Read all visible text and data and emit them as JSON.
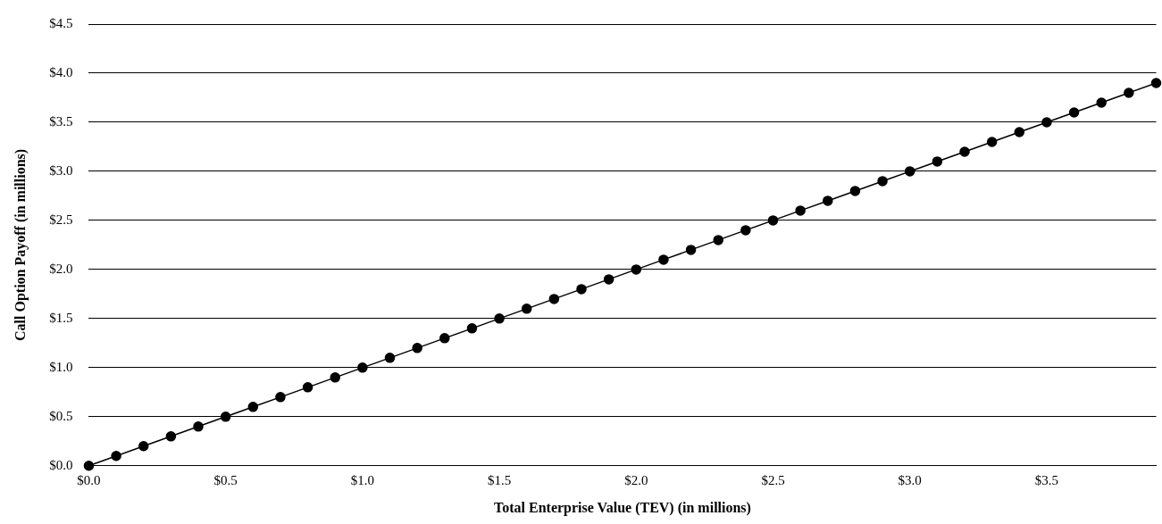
{
  "chart_data": {
    "type": "line",
    "xlabel": "Total Enterprise Value (TEV) (in millions)",
    "ylabel": "Call Option Payoff (in millions)",
    "x": [
      0,
      0.1,
      0.2,
      0.3,
      0.4,
      0.5,
      0.6,
      0.7,
      0.8,
      0.9,
      1.0,
      1.1,
      1.2,
      1.3,
      1.4,
      1.5,
      1.6,
      1.7,
      1.8,
      1.9,
      2.0,
      2.1,
      2.2,
      2.3,
      2.4,
      2.5,
      2.6,
      2.7,
      2.8,
      2.9,
      3.0,
      3.1,
      3.2,
      3.3,
      3.4,
      3.5,
      3.6,
      3.7,
      3.8,
      3.9
    ],
    "series": [
      {
        "color": "#000000",
        "values": [
          0,
          0.1,
          0.2,
          0.3,
          0.4,
          0.5,
          0.6,
          0.7,
          0.8,
          0.9,
          1.0,
          1.1,
          1.2,
          1.3,
          1.4,
          1.5,
          1.6,
          1.7,
          1.8,
          1.9,
          2.0,
          2.1,
          2.2,
          2.3,
          2.4,
          2.5,
          2.6,
          2.7,
          2.8,
          2.9,
          3.0,
          3.1,
          3.2,
          3.3,
          3.4,
          3.5,
          3.6,
          3.7,
          3.8,
          3.9
        ]
      }
    ],
    "xlim": [
      0,
      3.9
    ],
    "xticks": [
      {
        "value": 0,
        "label": "$0.0"
      },
      {
        "value": 0.5,
        "label": "$0.5"
      },
      {
        "value": 1,
        "label": "$1.0"
      },
      {
        "value": 1.5,
        "label": "$1.5"
      },
      {
        "value": 2,
        "label": "$2.0"
      },
      {
        "value": 2.5,
        "label": "$2.5"
      },
      {
        "value": 3,
        "label": "$3.0"
      },
      {
        "value": 3.5,
        "label": "$3.5"
      }
    ],
    "ylim": [
      0,
      4.5
    ],
    "yticks": [
      {
        "value": 0,
        "label": "$0.0"
      },
      {
        "value": 0.5,
        "label": "$0.5"
      },
      {
        "value": 1,
        "label": "$1.0"
      },
      {
        "value": 1.5,
        "label": "$1.5"
      },
      {
        "value": 2,
        "label": "$2.0"
      },
      {
        "value": 2.5,
        "label": "$2.5"
      },
      {
        "value": 3,
        "label": "$3.0"
      },
      {
        "value": 3.5,
        "label": "$3.5"
      },
      {
        "value": 4,
        "label": "$4.0"
      },
      {
        "value": 4.5,
        "label": "$4.5"
      }
    ],
    "grid": "y",
    "legend": false,
    "marker": "circle",
    "line_style": "solid"
  }
}
